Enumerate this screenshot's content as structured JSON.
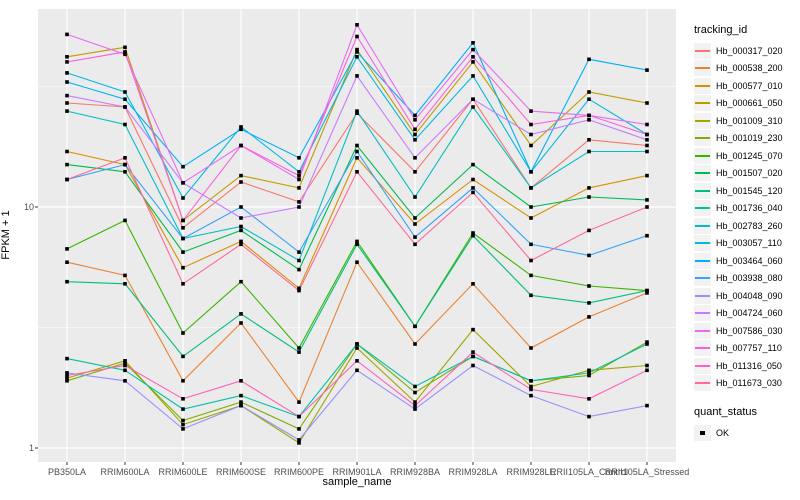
{
  "chart_data": {
    "type": "line",
    "title": "",
    "xlabel": "sample_name",
    "ylabel": "FPKM + 1",
    "y_scale": "log10",
    "y_ticks": [
      10,
      1
    ],
    "y_minor_ticks": [
      31.623,
      3.1623
    ],
    "ylim": [
      0.875,
      66
    ],
    "grid": true,
    "legend_position": "right",
    "legend_title": "tracking_id",
    "point_shape": "square",
    "point_color": "#000000",
    "theme": {
      "panel_background": "#EBEBEB",
      "grid_color": "#FFFFFF",
      "tick_label_color": "#4D4D4D",
      "axis_tick_color": "#333333",
      "legend_key_background": "#F2F2F2"
    },
    "categories": [
      "PB350LA",
      "RRIM600LA",
      "RRIM600LE",
      "RRIM600SE",
      "RRIM600PE",
      "RRIM901LA",
      "RRIM928BA",
      "RRIM928LA",
      "RRIM928LE",
      "RRII105LA_Control",
      "RRII105LA_Stressed"
    ],
    "series": [
      {
        "name": "Hb_000317_020",
        "color": "#F8766D",
        "values": [
          27,
          26,
          8.2,
          12.7,
          10.5,
          24.5,
          14,
          28,
          12,
          19,
          18
        ]
      },
      {
        "name": "Hb_000538_200",
        "color": "#EA8331",
        "values": [
          5.9,
          5.2,
          1.9,
          3.3,
          1.55,
          5.9,
          2.7,
          4.8,
          2.6,
          3.5,
          4.4
        ]
      },
      {
        "name": "Hb_000577_010",
        "color": "#D89000",
        "values": [
          17,
          15,
          5.6,
          7.2,
          4.6,
          16,
          8.5,
          13,
          9,
          12,
          13.5
        ]
      },
      {
        "name": "Hb_000661_050",
        "color": "#C09B00",
        "values": [
          42,
          46,
          8.8,
          13.5,
          12,
          45,
          20,
          40,
          18,
          30,
          27
        ]
      },
      {
        "name": "Hb_001009_310",
        "color": "#A3A500",
        "values": [
          1.95,
          2.3,
          1.25,
          1.5,
          1.05,
          2.6,
          1.55,
          3.1,
          1.8,
          2.1,
          2.2
        ]
      },
      {
        "name": "Hb_001019_230",
        "color": "#7CAE00",
        "values": [
          1.9,
          2.25,
          1.3,
          1.55,
          1.2,
          2.7,
          1.7,
          2.4,
          1.9,
          2.0,
          2.75
        ]
      },
      {
        "name": "Hb_001245_070",
        "color": "#39B600",
        "values": [
          6.7,
          8.8,
          3.0,
          4.9,
          2.6,
          7.2,
          3.2,
          7.8,
          5.2,
          4.7,
          4.5
        ]
      },
      {
        "name": "Hb_001507_020",
        "color": "#00BB4E",
        "values": [
          15,
          14,
          6.5,
          8.0,
          5.5,
          18,
          9,
          15,
          10,
          11,
          10.7
        ]
      },
      {
        "name": "Hb_001545_120",
        "color": "#00BF7D",
        "values": [
          4.9,
          4.8,
          2.4,
          3.6,
          2.5,
          7.0,
          3.2,
          7.6,
          4.3,
          4.0,
          4.5
        ]
      },
      {
        "name": "Hb_001736_040",
        "color": "#00C1A3",
        "values": [
          2.35,
          2.1,
          1.45,
          1.65,
          1.35,
          2.7,
          1.8,
          2.4,
          1.9,
          2.05,
          2.7
        ]
      },
      {
        "name": "Hb_002783_260",
        "color": "#00BFC4",
        "values": [
          25,
          22,
          7.4,
          8.3,
          6.0,
          25,
          11,
          26,
          12,
          17,
          17
        ]
      },
      {
        "name": "Hb_003057_110",
        "color": "#00BAE0",
        "values": [
          36,
          30,
          10.9,
          21.5,
          14,
          42,
          19,
          35,
          14,
          28,
          20
        ]
      },
      {
        "name": "Hb_003464_060",
        "color": "#00B0F6",
        "values": [
          33,
          28,
          14.7,
          21,
          16,
          44,
          24,
          48,
          14,
          41,
          37
        ]
      },
      {
        "name": "Hb_003938_080",
        "color": "#35A2FF",
        "values": [
          13,
          15,
          7.4,
          10,
          6.5,
          17,
          7.5,
          12,
          7,
          6.3,
          7.6
        ]
      },
      {
        "name": "Hb_004048_090",
        "color": "#9590FF",
        "values": [
          2.05,
          1.9,
          1.2,
          1.5,
          1.08,
          2.1,
          1.45,
          2.2,
          1.65,
          1.35,
          1.5
        ]
      },
      {
        "name": "Hb_004724_060",
        "color": "#C77CFF",
        "values": [
          29,
          26,
          12.6,
          9.0,
          10,
          35,
          16,
          28,
          20,
          23,
          19
        ]
      },
      {
        "name": "Hb_007586_030",
        "color": "#E76BF3",
        "values": [
          52,
          43,
          12.6,
          18,
          13,
          57,
          23,
          45,
          25,
          24,
          22
        ]
      },
      {
        "name": "Hb_007757_110",
        "color": "#FA62DB",
        "values": [
          40,
          44,
          8.8,
          18,
          13.5,
          51,
          21,
          42,
          22,
          24,
          20
        ]
      },
      {
        "name": "Hb_011316_050",
        "color": "#FF62BC",
        "values": [
          2.0,
          2.2,
          1.6,
          1.9,
          1.35,
          2.3,
          1.5,
          2.5,
          1.75,
          1.6,
          2.1
        ]
      },
      {
        "name": "Hb_011673_030",
        "color": "#FF6A98",
        "values": [
          13,
          16,
          4.8,
          7.0,
          4.5,
          14,
          7,
          11.5,
          6,
          8,
          10
        ]
      }
    ],
    "quant_status": {
      "title": "quant_status",
      "items": [
        {
          "label": "OK",
          "shape": "square",
          "color": "#000000"
        }
      ]
    }
  }
}
